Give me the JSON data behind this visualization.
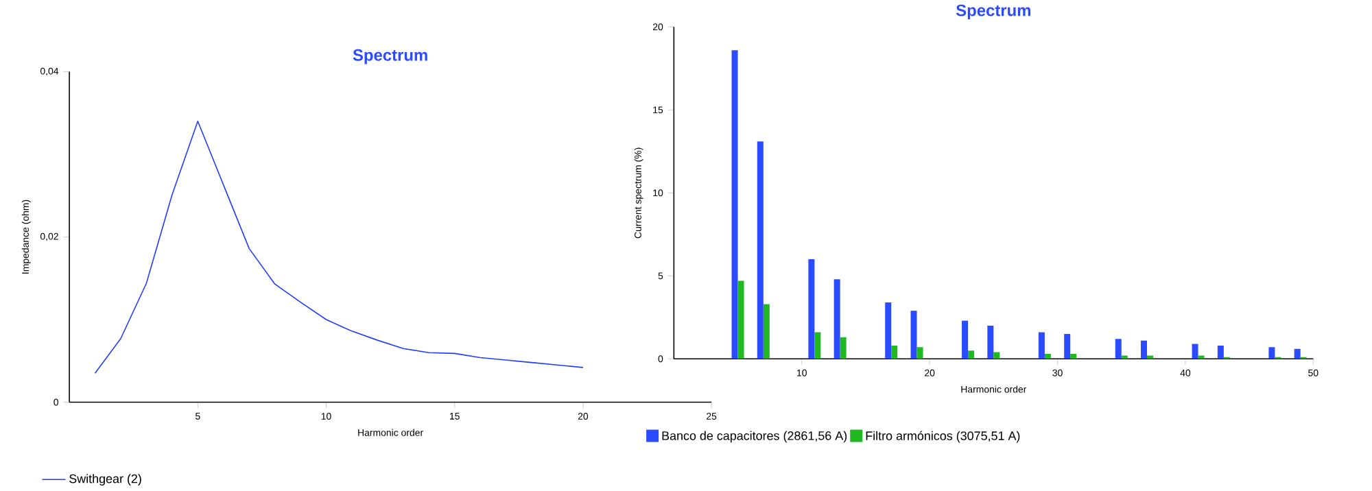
{
  "chart_data": [
    {
      "type": "line",
      "title": "Spectrum",
      "xlabel": "Harmonic order",
      "ylabel": "Impedance (ohm)",
      "x": [
        1,
        2,
        3,
        4,
        5,
        6,
        7,
        8,
        9,
        10,
        11,
        12,
        13,
        14,
        15,
        16,
        17,
        18,
        19,
        20
      ],
      "series": [
        {
          "name": "Swithgear (2)",
          "color": "#1f3cff",
          "values": [
            0.0035,
            0.0077,
            0.0144,
            0.0251,
            0.034,
            0.0263,
            0.0186,
            0.0143,
            0.0121,
            0.01,
            0.0086,
            0.0075,
            0.0065,
            0.006,
            0.0059,
            0.0054,
            0.0051,
            0.0048,
            0.0045,
            0.0042
          ]
        }
      ],
      "xlim": [
        0,
        25
      ],
      "ylim": [
        0,
        0.04
      ],
      "xticks": [
        5,
        10,
        15,
        20,
        25
      ],
      "yticks": [
        {
          "value": 0,
          "label": "0"
        },
        {
          "value": 0.02,
          "label": "0,02"
        },
        {
          "value": 0.04,
          "label": "0,04"
        }
      ],
      "grid": false,
      "legend": "bottom",
      "marker": "none",
      "line_style": "solid"
    },
    {
      "type": "bar",
      "title": "Spectrum",
      "xlabel": "Harmonic order",
      "ylabel": "Current spectrum (%)",
      "x": [
        5,
        7,
        11,
        13,
        17,
        19,
        23,
        25,
        29,
        31,
        35,
        37,
        41,
        43,
        47,
        49
      ],
      "series": [
        {
          "name": "Banco de capacitores (2861,56 A)",
          "color": "#2b4bff",
          "values": [
            18.6,
            13.1,
            6.0,
            4.8,
            3.4,
            2.9,
            2.3,
            2.0,
            1.6,
            1.5,
            1.2,
            1.1,
            0.9,
            0.8,
            0.7,
            0.6
          ]
        },
        {
          "name": "Filtro armónicos (3075,51 A)",
          "color": "#22b822",
          "values": [
            4.7,
            3.3,
            1.6,
            1.3,
            0.8,
            0.7,
            0.5,
            0.4,
            0.3,
            0.3,
            0.2,
            0.2,
            0.2,
            0.1,
            0.1,
            0.1
          ]
        }
      ],
      "xlim": [
        0,
        50
      ],
      "ylim": [
        0,
        20
      ],
      "xticks": [
        10,
        20,
        30,
        40,
        50
      ],
      "yticks": [
        0,
        5,
        10,
        15,
        20
      ],
      "grid": false,
      "legend": "bottom"
    }
  ]
}
